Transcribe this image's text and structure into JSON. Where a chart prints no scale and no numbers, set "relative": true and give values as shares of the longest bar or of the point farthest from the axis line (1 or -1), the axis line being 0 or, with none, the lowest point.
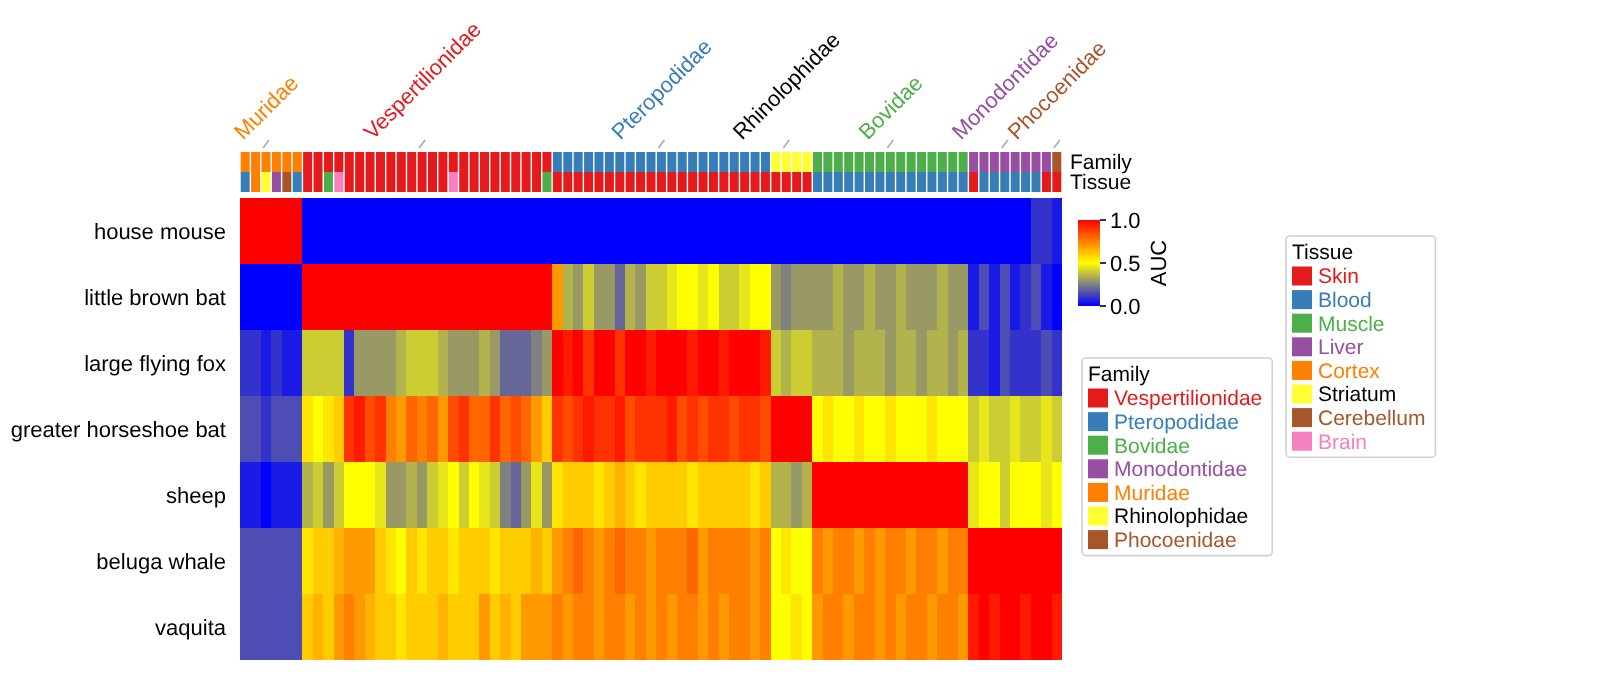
{
  "chart_data": [
    {
      "type": "bar",
      "stacked": true,
      "relative": true,
      "ylabel": "Family",
      "legend_title": "Family",
      "legend": "right",
      "categories": [
        null,
        null,
        null,
        null,
        null,
        null,
        null,
        null,
        null,
        null,
        null,
        null,
        null,
        null,
        null,
        null,
        null,
        null,
        null,
        null,
        null,
        null,
        null,
        null,
        null,
        null,
        null,
        null,
        null,
        null,
        null,
        null,
        null,
        null,
        null,
        null,
        null,
        null,
        null,
        null,
        null,
        null,
        null,
        null,
        null,
        null,
        null,
        null,
        null,
        null,
        null,
        null,
        null,
        null,
        null,
        null,
        null,
        null,
        null,
        null,
        null,
        null,
        null,
        null,
        null,
        null,
        null,
        null,
        null,
        null,
        null,
        null,
        null,
        null,
        null,
        null,
        null,
        null,
        null
      ],
      "series": [
        {
          "name": "Vespertilionidae",
          "color": "#e41a1c",
          "values": [
            null,
            null,
            null,
            null,
            null,
            null,
            1,
            1,
            1,
            1,
            1,
            1,
            1,
            1,
            1,
            1,
            1,
            1,
            1,
            1,
            1,
            1,
            1,
            1,
            1,
            1,
            1,
            1,
            1,
            1,
            null,
            null,
            null,
            null,
            null,
            null,
            null,
            null,
            null,
            null,
            null,
            null,
            null,
            null,
            null,
            null,
            null,
            null,
            null,
            null,
            null,
            null,
            null,
            null,
            null,
            null,
            null,
            null,
            null,
            null,
            null,
            null,
            null,
            null,
            null,
            null,
            null,
            null,
            null,
            null,
            null,
            null,
            null,
            null,
            null,
            null,
            null,
            null,
            null
          ]
        },
        {
          "name": "Pteropodidae",
          "color": "#377eb8",
          "values": [
            null,
            null,
            null,
            null,
            null,
            null,
            null,
            null,
            null,
            null,
            null,
            null,
            null,
            null,
            null,
            null,
            null,
            null,
            null,
            null,
            null,
            null,
            null,
            null,
            null,
            null,
            null,
            null,
            null,
            null,
            1,
            1,
            1,
            1,
            1,
            1,
            1,
            1,
            1,
            1,
            1,
            1,
            1,
            1,
            1,
            1,
            1,
            1,
            1,
            1,
            1,
            null,
            null,
            null,
            null,
            null,
            null,
            null,
            null,
            null,
            null,
            null,
            null,
            null,
            null,
            null,
            null,
            null,
            null,
            null,
            null,
            null,
            null,
            null,
            null,
            null,
            null,
            null,
            null
          ]
        },
        {
          "name": "Bovidae",
          "color": "#4daf4a",
          "values": [
            null,
            null,
            null,
            null,
            null,
            null,
            null,
            null,
            null,
            null,
            null,
            null,
            null,
            null,
            null,
            null,
            null,
            null,
            null,
            null,
            null,
            null,
            null,
            null,
            null,
            null,
            null,
            null,
            null,
            null,
            null,
            null,
            null,
            null,
            null,
            null,
            null,
            null,
            null,
            null,
            null,
            null,
            null,
            null,
            null,
            null,
            null,
            null,
            null,
            null,
            null,
            null,
            null,
            null,
            null,
            1,
            1,
            1,
            1,
            1,
            1,
            1,
            1,
            1,
            1,
            1,
            1,
            1,
            1,
            1,
            null,
            null,
            null,
            null,
            null,
            null,
            null,
            null,
            null
          ]
        },
        {
          "name": "Monodontidae",
          "color": "#984ea3",
          "values": [
            null,
            null,
            null,
            null,
            null,
            null,
            null,
            null,
            null,
            null,
            null,
            null,
            null,
            null,
            null,
            null,
            null,
            null,
            null,
            null,
            null,
            null,
            null,
            null,
            null,
            null,
            null,
            null,
            null,
            null,
            null,
            null,
            null,
            null,
            null,
            null,
            null,
            null,
            null,
            null,
            null,
            null,
            null,
            null,
            null,
            null,
            null,
            null,
            null,
            null,
            null,
            null,
            null,
            null,
            null,
            null,
            null,
            null,
            null,
            null,
            null,
            null,
            null,
            null,
            null,
            null,
            null,
            null,
            null,
            null,
            1,
            1,
            1,
            1,
            1,
            1,
            1,
            1,
            null
          ]
        },
        {
          "name": "Muridae",
          "color": "#ff7f00",
          "values": [
            1,
            1,
            1,
            1,
            1,
            1,
            null,
            null,
            null,
            null,
            null,
            null,
            null,
            null,
            null,
            null,
            null,
            null,
            null,
            null,
            null,
            null,
            null,
            null,
            null,
            null,
            null,
            null,
            null,
            null,
            null,
            null,
            null,
            null,
            null,
            null,
            null,
            null,
            null,
            null,
            null,
            null,
            null,
            null,
            null,
            null,
            null,
            null,
            null,
            null,
            null,
            null,
            null,
            null,
            null,
            null,
            null,
            null,
            null,
            null,
            null,
            null,
            null,
            null,
            null,
            null,
            null,
            null,
            null,
            null,
            null,
            null,
            null,
            null,
            null,
            null,
            null,
            null,
            null
          ]
        },
        {
          "name": "Rhinolophidae",
          "color": "#ffff33",
          "values": [
            null,
            null,
            null,
            null,
            null,
            null,
            null,
            null,
            null,
            null,
            null,
            null,
            null,
            null,
            null,
            null,
            null,
            null,
            null,
            null,
            null,
            null,
            null,
            null,
            null,
            null,
            null,
            null,
            null,
            null,
            null,
            null,
            null,
            null,
            null,
            null,
            null,
            null,
            null,
            null,
            null,
            null,
            null,
            null,
            null,
            null,
            null,
            null,
            null,
            null,
            null,
            1,
            1,
            1,
            1,
            null,
            null,
            null,
            null,
            null,
            null,
            null,
            null,
            null,
            null,
            null,
            null,
            null,
            null,
            null,
            null,
            null,
            null,
            null,
            null,
            null,
            null,
            null,
            null
          ]
        },
        {
          "name": "Phocoenidae",
          "color": "#a65628",
          "values": [
            null,
            null,
            null,
            null,
            null,
            null,
            null,
            null,
            null,
            null,
            null,
            null,
            null,
            null,
            null,
            null,
            null,
            null,
            null,
            null,
            null,
            null,
            null,
            null,
            null,
            null,
            null,
            null,
            null,
            null,
            null,
            null,
            null,
            null,
            null,
            null,
            null,
            null,
            null,
            null,
            null,
            null,
            null,
            null,
            null,
            null,
            null,
            null,
            null,
            null,
            null,
            null,
            null,
            null,
            null,
            null,
            null,
            null,
            null,
            null,
            null,
            null,
            null,
            null,
            null,
            null,
            null,
            null,
            null,
            null,
            null,
            null,
            null,
            null,
            null,
            null,
            null,
            null,
            1
          ]
        }
      ]
    },
    {
      "type": "bar",
      "stacked": true,
      "relative": true,
      "ylabel": "Tissue",
      "legend_title": "Tissue",
      "legend": "right",
      "categories": [
        null,
        null,
        null,
        null,
        null,
        null,
        null,
        null,
        null,
        null,
        null,
        null,
        null,
        null,
        null,
        null,
        null,
        null,
        null,
        null,
        null,
        null,
        null,
        null,
        null,
        null,
        null,
        null,
        null,
        null,
        null,
        null,
        null,
        null,
        null,
        null,
        null,
        null,
        null,
        null,
        null,
        null,
        null,
        null,
        null,
        null,
        null,
        null,
        null,
        null,
        null,
        null,
        null,
        null,
        null,
        null,
        null,
        null,
        null,
        null,
        null,
        null,
        null,
        null,
        null,
        null,
        null,
        null,
        null,
        null,
        null,
        null,
        null,
        null,
        null,
        null,
        null,
        null,
        null
      ],
      "series": [
        {
          "name": "Skin",
          "color": "#e41a1c",
          "values": [
            null,
            null,
            null,
            null,
            null,
            null,
            1,
            1,
            null,
            null,
            1,
            1,
            1,
            1,
            1,
            1,
            1,
            1,
            1,
            1,
            null,
            1,
            1,
            1,
            1,
            1,
            1,
            1,
            1,
            null,
            1,
            1,
            1,
            1,
            1,
            1,
            1,
            1,
            1,
            1,
            1,
            1,
            1,
            1,
            1,
            1,
            1,
            1,
            1,
            1,
            1,
            1,
            1,
            1,
            1,
            null,
            null,
            null,
            null,
            null,
            null,
            null,
            null,
            null,
            null,
            null,
            null,
            null,
            null,
            null,
            1,
            null,
            null,
            null,
            null,
            null,
            null,
            1,
            1
          ]
        },
        {
          "name": "Blood",
          "color": "#377eb8",
          "values": [
            1,
            null,
            null,
            null,
            null,
            1,
            null,
            null,
            null,
            null,
            null,
            null,
            null,
            null,
            null,
            null,
            null,
            null,
            null,
            null,
            null,
            null,
            null,
            null,
            null,
            null,
            null,
            null,
            null,
            null,
            null,
            null,
            null,
            null,
            null,
            null,
            null,
            null,
            null,
            null,
            null,
            null,
            null,
            null,
            null,
            null,
            null,
            null,
            null,
            null,
            null,
            null,
            null,
            null,
            null,
            1,
            1,
            1,
            1,
            1,
            1,
            1,
            1,
            1,
            1,
            1,
            1,
            1,
            1,
            1,
            null,
            1,
            1,
            1,
            1,
            1,
            1,
            null,
            null
          ]
        },
        {
          "name": "Muscle",
          "color": "#4daf4a",
          "values": [
            null,
            null,
            null,
            null,
            null,
            null,
            null,
            null,
            1,
            null,
            null,
            null,
            null,
            null,
            null,
            null,
            null,
            null,
            null,
            null,
            null,
            null,
            null,
            null,
            null,
            null,
            null,
            null,
            null,
            1,
            null,
            null,
            null,
            null,
            null,
            null,
            null,
            null,
            null,
            null,
            null,
            null,
            null,
            null,
            null,
            null,
            null,
            null,
            null,
            null,
            null,
            null,
            null,
            null,
            null,
            null,
            null,
            null,
            null,
            null,
            null,
            null,
            null,
            null,
            null,
            null,
            null,
            null,
            null,
            null,
            null,
            null,
            null,
            null,
            null,
            null,
            null,
            null,
            null
          ]
        },
        {
          "name": "Liver",
          "color": "#984ea3",
          "values": [
            null,
            null,
            null,
            1,
            null,
            null,
            null,
            null,
            null,
            null,
            null,
            null,
            null,
            null,
            null,
            null,
            null,
            null,
            null,
            null,
            null,
            null,
            null,
            null,
            null,
            null,
            null,
            null,
            null,
            null,
            null,
            null,
            null,
            null,
            null,
            null,
            null,
            null,
            null,
            null,
            null,
            null,
            null,
            null,
            null,
            null,
            null,
            null,
            null,
            null,
            null,
            null,
            null,
            null,
            null,
            null,
            null,
            null,
            null,
            null,
            null,
            null,
            null,
            null,
            null,
            null,
            null,
            null,
            null,
            null,
            null,
            null,
            null,
            null,
            null,
            null,
            null,
            null,
            null
          ]
        },
        {
          "name": "Cortex",
          "color": "#ff7f00",
          "values": [
            null,
            1,
            null,
            null,
            null,
            null,
            null,
            null,
            null,
            null,
            null,
            null,
            null,
            null,
            null,
            null,
            null,
            null,
            null,
            null,
            null,
            null,
            null,
            null,
            null,
            null,
            null,
            null,
            null,
            null,
            null,
            null,
            null,
            null,
            null,
            null,
            null,
            null,
            null,
            null,
            null,
            null,
            null,
            null,
            null,
            null,
            null,
            null,
            null,
            null,
            null,
            null,
            null,
            null,
            null,
            null,
            null,
            null,
            null,
            null,
            null,
            null,
            null,
            null,
            null,
            null,
            null,
            null,
            null,
            null,
            null,
            null,
            null,
            null,
            null,
            null,
            null,
            null,
            null
          ]
        },
        {
          "name": "Striatum",
          "color": "#ffff33",
          "values": [
            null,
            null,
            1,
            null,
            null,
            null,
            null,
            null,
            null,
            null,
            null,
            null,
            null,
            null,
            null,
            null,
            null,
            null,
            null,
            null,
            null,
            null,
            null,
            null,
            null,
            null,
            null,
            null,
            null,
            null,
            null,
            null,
            null,
            null,
            null,
            null,
            null,
            null,
            null,
            null,
            null,
            null,
            null,
            null,
            null,
            null,
            null,
            null,
            null,
            null,
            null,
            null,
            null,
            null,
            null,
            null,
            null,
            null,
            null,
            null,
            null,
            null,
            null,
            null,
            null,
            null,
            null,
            null,
            null,
            null,
            null,
            null,
            null,
            null,
            null,
            null,
            null,
            null,
            null
          ]
        },
        {
          "name": "Cerebellum",
          "color": "#a65628",
          "values": [
            null,
            null,
            null,
            null,
            1,
            null,
            null,
            null,
            null,
            null,
            null,
            null,
            null,
            null,
            null,
            null,
            null,
            null,
            null,
            null,
            null,
            null,
            null,
            null,
            null,
            null,
            null,
            null,
            null,
            null,
            null,
            null,
            null,
            null,
            null,
            null,
            null,
            null,
            null,
            null,
            null,
            null,
            null,
            null,
            null,
            null,
            null,
            null,
            null,
            null,
            null,
            null,
            null,
            null,
            null,
            null,
            null,
            null,
            null,
            null,
            null,
            null,
            null,
            null,
            null,
            null,
            null,
            null,
            null,
            null,
            null,
            null,
            null,
            null,
            null,
            null,
            null,
            null,
            null
          ]
        },
        {
          "name": "Brain",
          "color": "#f781bf",
          "values": [
            null,
            null,
            null,
            null,
            null,
            null,
            null,
            null,
            null,
            1,
            null,
            null,
            null,
            null,
            null,
            null,
            null,
            null,
            null,
            null,
            1,
            null,
            null,
            null,
            null,
            null,
            null,
            null,
            null,
            null,
            null,
            null,
            null,
            null,
            null,
            null,
            null,
            null,
            null,
            null,
            null,
            null,
            null,
            null,
            null,
            null,
            null,
            null,
            null,
            null,
            null,
            null,
            null,
            null,
            null,
            null,
            null,
            null,
            null,
            null,
            null,
            null,
            null,
            null,
            null,
            null,
            null,
            null,
            null,
            null,
            null,
            null,
            null,
            null,
            null,
            null,
            null,
            null,
            null
          ]
        }
      ]
    },
    {
      "type": "heatmap",
      "categories": [
        null,
        null,
        "Muridae",
        null,
        null,
        null,
        null,
        null,
        null,
        null,
        null,
        null,
        null,
        null,
        null,
        null,
        null,
        "Vespertilionidae",
        null,
        null,
        null,
        null,
        null,
        null,
        null,
        null,
        null,
        null,
        null,
        null,
        null,
        null,
        null,
        null,
        null,
        null,
        null,
        null,
        null,
        null,
        "Pteropodidae",
        null,
        null,
        null,
        null,
        null,
        null,
        null,
        null,
        null,
        null,
        null,
        "Rhinolophidae",
        null,
        null,
        null,
        null,
        null,
        null,
        null,
        null,
        null,
        "Bovidae",
        null,
        null,
        null,
        null,
        null,
        null,
        null,
        null,
        null,
        null,
        "Monodontidae",
        null,
        null,
        null,
        null,
        "Phocoenidae"
      ],
      "y_categories": [
        "house mouse",
        "little brown bat",
        "large flying fox",
        "greater horseshoe bat",
        "sheep",
        "beluga whale",
        "vaquita"
      ],
      "clim": [
        0,
        1
      ],
      "cticks": [
        {
          "value": 0,
          "label": "0.0"
        },
        0.5,
        {
          "value": 1,
          "label": "1.0"
        }
      ],
      "clabel": "AUC",
      "cells": [
        [
          1,
          1,
          1,
          1,
          1,
          1,
          0,
          0,
          0,
          0,
          0,
          0,
          0,
          0,
          0,
          0,
          0,
          0,
          0,
          0,
          0,
          0,
          0,
          0,
          0,
          0,
          0,
          0,
          0,
          0,
          0,
          0,
          0,
          0,
          0,
          0,
          0,
          0,
          0,
          0,
          0,
          0,
          0,
          0,
          0,
          0,
          0,
          0,
          0,
          0,
          0,
          0,
          0,
          0,
          0,
          0,
          0,
          0,
          0,
          0,
          0,
          0,
          0,
          0,
          0,
          0,
          0,
          0,
          0,
          0,
          0,
          0,
          0,
          0,
          0,
          0,
          0.1,
          0.1,
          0.05
        ],
        [
          0,
          0,
          0,
          0,
          0,
          0,
          1,
          1,
          1,
          1,
          1,
          1,
          1,
          1,
          1,
          1,
          1,
          1,
          1,
          1,
          1,
          1,
          1,
          1,
          1,
          1,
          1,
          1,
          1,
          1,
          0.7,
          0.35,
          0.3,
          0.4,
          0.3,
          0.3,
          0.2,
          0.35,
          0.3,
          0.4,
          0.4,
          0.45,
          0.5,
          0.5,
          0.45,
          0.5,
          0.4,
          0.4,
          0.45,
          0.5,
          0.5,
          0.3,
          0.25,
          0.3,
          0.3,
          0.3,
          0.3,
          0.35,
          0.3,
          0.3,
          0.35,
          0.3,
          0.3,
          0.35,
          0.3,
          0.3,
          0.3,
          0.35,
          0.3,
          0.3,
          0.05,
          0.15,
          0.05,
          0.15,
          0.05,
          0.1,
          0.15,
          0.05,
          0
        ],
        [
          0.1,
          0.1,
          0.05,
          0.1,
          0.05,
          0.05,
          0.4,
          0.4,
          0.4,
          0.4,
          0.1,
          0.3,
          0.3,
          0.3,
          0.3,
          0.35,
          0.4,
          0.4,
          0.4,
          0.35,
          0.3,
          0.3,
          0.3,
          0.35,
          0.3,
          0.2,
          0.2,
          0.2,
          0.25,
          0.3,
          1,
          0.95,
          1,
          0.9,
          1,
          1,
          0.9,
          1,
          1,
          0.95,
          1,
          1,
          1,
          0.95,
          1,
          1,
          0.95,
          1,
          1,
          1,
          0.95,
          0.4,
          0.35,
          0.4,
          0.4,
          0.35,
          0.35,
          0.35,
          0.3,
          0.35,
          0.35,
          0.35,
          0.3,
          0.35,
          0.35,
          0.3,
          0.35,
          0.35,
          0.3,
          0.35,
          0.1,
          0.1,
          0.05,
          0.15,
          0.1,
          0.1,
          0.1,
          0.15,
          0.1
        ],
        [
          0.15,
          0.15,
          0.1,
          0.15,
          0.15,
          0.15,
          0.55,
          0.5,
          0.55,
          0.6,
          0.9,
          0.95,
          0.85,
          0.9,
          0.75,
          0.7,
          0.8,
          0.75,
          0.8,
          0.7,
          0.85,
          0.9,
          0.8,
          0.8,
          0.9,
          0.8,
          0.85,
          0.8,
          0.7,
          0.6,
          0.9,
          0.85,
          0.9,
          0.95,
          0.9,
          0.9,
          0.95,
          0.85,
          0.9,
          0.9,
          0.9,
          0.95,
          0.85,
          0.9,
          0.85,
          0.9,
          0.9,
          0.85,
          0.9,
          0.9,
          0.85,
          1,
          1,
          1,
          1,
          0.5,
          0.55,
          0.5,
          0.5,
          0.55,
          0.5,
          0.5,
          0.55,
          0.5,
          0.5,
          0.5,
          0.55,
          0.5,
          0.5,
          0.5,
          0.4,
          0.45,
          0.4,
          0.4,
          0.45,
          0.4,
          0.4,
          0.45,
          0.4
        ],
        [
          0.05,
          0.05,
          0,
          0.05,
          0.05,
          0.05,
          0.35,
          0.4,
          0.3,
          0.4,
          0.5,
          0.5,
          0.5,
          0.45,
          0.3,
          0.3,
          0.35,
          0.3,
          0.4,
          0.45,
          0.5,
          0.4,
          0.5,
          0.45,
          0.4,
          0.25,
          0.2,
          0.3,
          0.45,
          0.3,
          0.55,
          0.6,
          0.6,
          0.6,
          0.55,
          0.6,
          0.65,
          0.6,
          0.55,
          0.6,
          0.6,
          0.6,
          0.6,
          0.55,
          0.6,
          0.6,
          0.6,
          0.6,
          0.6,
          0.55,
          0.6,
          0.35,
          0.35,
          0.3,
          0.35,
          1,
          1,
          1,
          1,
          1,
          1,
          1,
          1,
          1,
          1,
          1,
          1,
          1,
          1,
          1,
          0.45,
          0.5,
          0.5,
          0.4,
          0.5,
          0.5,
          0.5,
          0.45,
          0.5
        ],
        [
          0.15,
          0.15,
          0.15,
          0.15,
          0.15,
          0.15,
          0.55,
          0.6,
          0.6,
          0.65,
          0.7,
          0.7,
          0.7,
          0.6,
          0.55,
          0.5,
          0.6,
          0.55,
          0.6,
          0.6,
          0.55,
          0.6,
          0.6,
          0.6,
          0.55,
          0.6,
          0.6,
          0.6,
          0.65,
          0.6,
          0.7,
          0.75,
          0.8,
          0.75,
          0.7,
          0.75,
          0.8,
          0.75,
          0.75,
          0.7,
          0.75,
          0.75,
          0.75,
          0.8,
          0.7,
          0.75,
          0.75,
          0.75,
          0.75,
          0.7,
          0.75,
          0.5,
          0.55,
          0.5,
          0.5,
          0.75,
          0.7,
          0.75,
          0.75,
          0.7,
          0.75,
          0.7,
          0.75,
          0.75,
          0.7,
          0.75,
          0.75,
          0.7,
          0.75,
          0.75,
          1,
          1,
          1,
          1,
          1,
          1,
          1,
          1,
          1
        ],
        [
          0.15,
          0.15,
          0.15,
          0.15,
          0.15,
          0.15,
          0.6,
          0.65,
          0.6,
          0.7,
          0.75,
          0.7,
          0.65,
          0.6,
          0.6,
          0.55,
          0.6,
          0.6,
          0.6,
          0.65,
          0.6,
          0.6,
          0.6,
          0.7,
          0.6,
          0.65,
          0.6,
          0.7,
          0.7,
          0.7,
          0.75,
          0.7,
          0.75,
          0.75,
          0.7,
          0.75,
          0.75,
          0.7,
          0.75,
          0.7,
          0.75,
          0.7,
          0.75,
          0.75,
          0.7,
          0.75,
          0.7,
          0.75,
          0.75,
          0.7,
          0.75,
          0.5,
          0.5,
          0.55,
          0.5,
          0.7,
          0.75,
          0.75,
          0.7,
          0.75,
          0.75,
          0.7,
          0.75,
          0.7,
          0.75,
          0.75,
          0.7,
          0.75,
          0.75,
          0.7,
          0.95,
          1,
          0.95,
          1,
          1,
          0.95,
          1,
          1,
          0.95
        ]
      ]
    }
  ]
}
